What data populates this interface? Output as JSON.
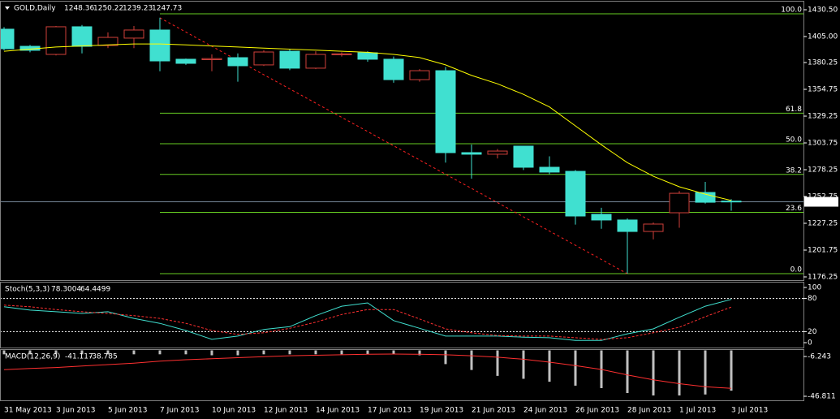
{
  "chart_data": [
    {
      "type": "candlestick",
      "title": "GOLD,Daily",
      "categories": [
        "31 May 2013",
        null,
        "3 Jun 2013",
        null,
        "5 Jun 2013",
        null,
        "7 Jun 2013",
        null,
        "10 Jun 2013",
        null,
        "12 Jun 2013",
        null,
        "14 Jun 2013",
        null,
        "17 Jun 2013",
        null,
        "19 Jun 2013",
        null,
        "21 Jun 2013",
        null,
        "24 Jun 2013",
        null,
        "26 Jun 2013",
        null,
        "28 Jun 2013",
        null,
        "1 Jul 2013",
        null,
        "3 Jul 2013"
      ],
      "open": [
        1412,
        1395.7,
        1388,
        1414.3,
        1396.5,
        1403.5,
        1411.2,
        1383.4,
        1383,
        1384.9,
        1378,
        1391,
        1374.9,
        1388,
        1389.5,
        1383.4,
        1364,
        1372.5,
        1294.5,
        1293,
        1300.7,
        1280.6,
        1276.7,
        1235.8,
        1230.4,
        1219.5,
        1237.3,
        1256.6,
        1248.36
      ],
      "high": [
        1414,
        1397,
        1415,
        1416,
        1409,
        1415,
        1423,
        1384,
        1388,
        1389,
        1392,
        1393,
        1391,
        1390,
        1391,
        1386,
        1374,
        1376,
        1302.2,
        1298,
        1301,
        1291,
        1278,
        1242,
        1232,
        1228,
        1258,
        1266.7,
        1250.22
      ],
      "low": [
        1392,
        1390,
        1387,
        1389,
        1394,
        1394,
        1372,
        1378,
        1372,
        1362,
        1377,
        1373,
        1374,
        1386,
        1381,
        1361,
        1362,
        1285,
        1269.8,
        1289,
        1278,
        1274,
        1226,
        1222,
        1179.3,
        1212,
        1223,
        1246,
        1239.23
      ],
      "close": [
        1393.4,
        1391.9,
        1414.3,
        1395.7,
        1404.2,
        1411.2,
        1381.8,
        1379.5,
        1384,
        1377.2,
        1390.3,
        1374.9,
        1388,
        1388.5,
        1383.4,
        1364,
        1372.5,
        1294.5,
        1293,
        1296,
        1280.6,
        1276,
        1234.2,
        1230.4,
        1219.5,
        1226.5,
        1255.8,
        1247.3,
        1247.73
      ],
      "up_color": "#000000",
      "up_border": "#d0403a",
      "down_color": "#40e0d0",
      "ylim": [
        1176.25,
        1430.5
      ],
      "yticks": [
        {
          "value": 1430.5,
          "label": "1430.50"
        },
        {
          "value": 1405,
          "label": "1405.00"
        },
        {
          "value": 1380.25,
          "label": "1380.25"
        },
        {
          "value": 1354.75,
          "label": "1354.75"
        },
        {
          "value": 1329.25,
          "label": "1329.25"
        },
        {
          "value": 1303.75,
          "label": "1303.75"
        },
        {
          "value": 1278.25,
          "label": "1278.25"
        },
        {
          "value": 1252.75,
          "label": "1252.75"
        },
        {
          "value": 1227.25,
          "label": "1227.25"
        },
        {
          "value": 1201.75,
          "label": "1201.75"
        },
        {
          "value": 1176.25,
          "label": "1176.25"
        }
      ],
      "last_price": 1247.73,
      "moving_average": {
        "color": "#ffff00",
        "values": [
          1391,
          1393,
          1395,
          1396,
          1397,
          1398,
          1398,
          1397,
          1396,
          1395,
          1394,
          1393,
          1392,
          1391,
          1390,
          1388,
          1385,
          1378,
          1368,
          1360,
          1350,
          1338,
          1320,
          1302,
          1285,
          1272,
          1262,
          1255,
          1249
        ]
      },
      "fibonacci": {
        "color": "#66cc22",
        "start": "7 Jun 2013",
        "levels": [
          {
            "ratio": "100.0",
            "price": 1426.6
          },
          {
            "ratio": "61.8",
            "price": 1332.1
          },
          {
            "ratio": "50.0",
            "price": 1303
          },
          {
            "ratio": "38.2",
            "price": 1273.8
          },
          {
            "ratio": "23.6",
            "price": 1237.7
          },
          {
            "ratio": "0.0",
            "price": 1179.3
          }
        ]
      },
      "trendline": {
        "color": "#ff2020",
        "x": [
          "7 Jun 2013",
          "28 Jun 2013"
        ],
        "y": [
          1422.8,
          1179.3
        ]
      }
    },
    {
      "type": "line",
      "title": "Stoch(5,3,3)",
      "series": [
        {
          "color": "#40e0d0",
          "values": [
            65,
            59,
            56,
            53,
            56,
            44,
            35,
            22,
            6,
            12,
            24,
            29,
            49,
            66,
            72,
            40,
            26,
            12,
            12,
            12,
            10,
            9,
            4,
            4,
            16,
            25,
            46,
            66,
            78.3004
          ]
        },
        {
          "color": "#ff3030",
          "dashed": true,
          "values": [
            68,
            65,
            60,
            56,
            53,
            49,
            44,
            35,
            22,
            15,
            18,
            26,
            37,
            51,
            60,
            60,
            43,
            25,
            18,
            13,
            12,
            12,
            9,
            6,
            9,
            18,
            28,
            47,
            64.4499
          ]
        }
      ],
      "ylim": [
        -8.8,
        108.8
      ],
      "yticks": [
        100,
        80,
        20,
        0
      ],
      "levels": [
        80,
        20
      ]
    },
    {
      "type": "macd",
      "title": "MACD(12,26,9)",
      "series": [
        {
          "type": "bar",
          "color": "#c0c0c0",
          "values": [
            -4,
            -4,
            -4,
            -4,
            -4,
            -4,
            -4,
            -4,
            -5,
            -5,
            -4,
            -4,
            -4,
            -4,
            -4,
            -4,
            -5,
            -14,
            -20,
            -26,
            -29,
            -32,
            -36,
            -38.5,
            -43.5,
            -46,
            -46,
            -45,
            -41.117
          ]
        },
        {
          "type": "line",
          "color": "#ff3030",
          "values": [
            -19.6,
            -18.5,
            -17.5,
            -16,
            -14.5,
            -13,
            -11,
            -9.5,
            -8.5,
            -7.5,
            -6.5,
            -5.5,
            -5,
            -4.5,
            -4,
            -3.7,
            -4,
            -4.5,
            -5.5,
            -7,
            -9,
            -12,
            -15.5,
            -19.5,
            -25,
            -30,
            -34,
            -37,
            -38.785
          ]
        }
      ],
      "ylim": [
        -50.95,
        0.41
      ],
      "yticks": [
        -6.243,
        -46.811
      ]
    }
  ]
}
